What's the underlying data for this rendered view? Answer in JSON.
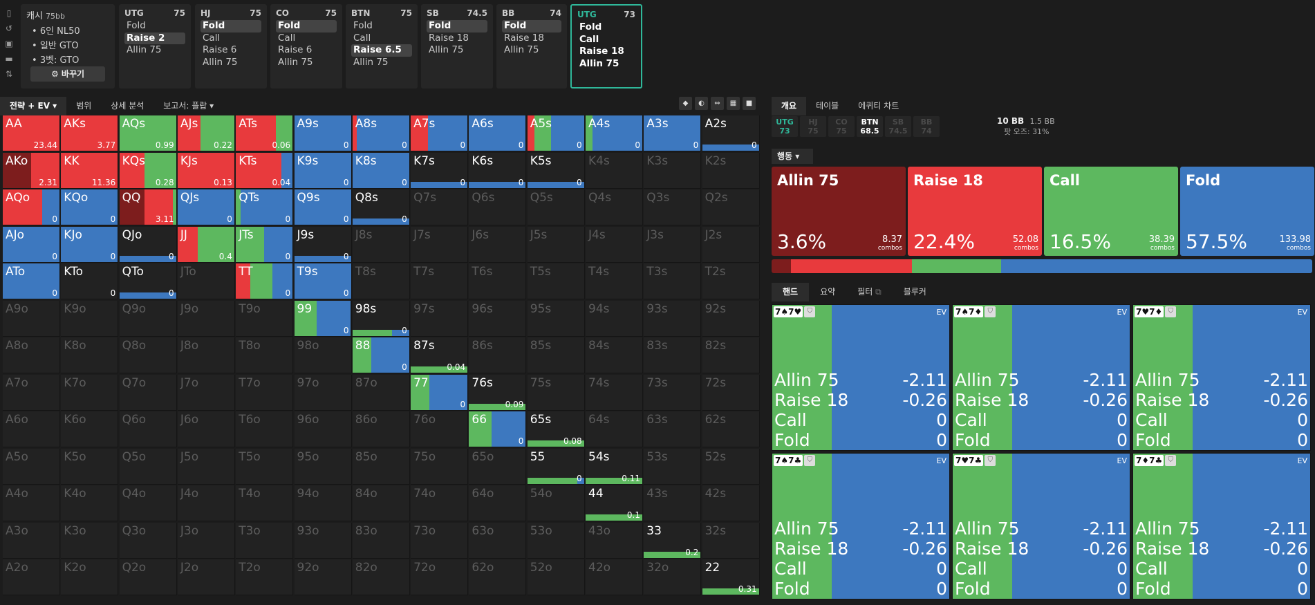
{
  "info": {
    "title": "캐시",
    "stack": "75bb",
    "items": [
      "6인 NL50",
      "일반 GTO",
      "3벳: GTO"
    ],
    "button": "바꾸기"
  },
  "positions": [
    {
      "name": "UTG",
      "stack": "75",
      "options": [
        "Fold",
        "Raise 2",
        "Allin 75"
      ],
      "selected": 1
    },
    {
      "name": "HJ",
      "stack": "75",
      "options": [
        "Fold",
        "Call",
        "Raise 6",
        "Allin 75"
      ],
      "selected": 0
    },
    {
      "name": "CO",
      "stack": "75",
      "options": [
        "Fold",
        "Call",
        "Raise 6",
        "Allin 75"
      ],
      "selected": 0
    },
    {
      "name": "BTN",
      "stack": "75",
      "options": [
        "Fold",
        "Call",
        "Raise 6.5",
        "Allin 75"
      ],
      "selected": 2
    },
    {
      "name": "SB",
      "stack": "74.5",
      "options": [
        "Fold",
        "Raise 18",
        "Allin 75"
      ],
      "selected": 0
    },
    {
      "name": "BB",
      "stack": "74",
      "options": [
        "Fold",
        "Raise 18",
        "Allin 75"
      ],
      "selected": 0
    },
    {
      "name": "UTG",
      "stack": "73",
      "options": [
        "Fold",
        "Call",
        "Raise 18",
        "Allin 75"
      ],
      "selected": -1
    }
  ],
  "grid_tabs": [
    "전략 + EV",
    "범위",
    "상세 분석",
    "보고서: 플랍"
  ],
  "right_tabs": [
    "개요",
    "테이블",
    "에퀴티 차트"
  ],
  "seats": [
    {
      "name": "UTG",
      "stack": "73"
    },
    {
      "name": "HJ",
      "stack": "75"
    },
    {
      "name": "CO",
      "stack": "75"
    },
    {
      "name": "BTN",
      "stack": "68.5"
    },
    {
      "name": "SB",
      "stack": "74.5"
    },
    {
      "name": "BB",
      "stack": "74"
    }
  ],
  "pot": {
    "main": "10 BB",
    "side": "1.5 BB",
    "label": "팟 오즈:",
    "odds": "31%"
  },
  "action_header": "행동",
  "actions": [
    {
      "name": "Allin 75",
      "pct": "3.6%",
      "combos": "8.37",
      "unit": "combos",
      "color": "#7d1d1d",
      "freq": 3.6
    },
    {
      "name": "Raise 18",
      "pct": "22.4%",
      "combos": "52.08",
      "unit": "combos",
      "color": "#e83a3d",
      "freq": 22.4
    },
    {
      "name": "Call",
      "pct": "16.5%",
      "combos": "38.39",
      "unit": "combos",
      "color": "#5db85f",
      "freq": 16.5
    },
    {
      "name": "Fold",
      "pct": "57.5%",
      "combos": "133.98",
      "unit": "combos",
      "color": "#3d78bf",
      "freq": 57.5
    }
  ],
  "hand_tabs": [
    "핸드",
    "요약",
    "필터",
    "블루커"
  ],
  "hands": [
    {
      "cards": [
        "7♠",
        "7♥"
      ],
      "ev_label": "EV",
      "rows": [
        [
          "Allin 75",
          "-2.11"
        ],
        [
          "Raise 18",
          "-0.26"
        ],
        [
          "Call",
          "0"
        ],
        [
          "Fold",
          "0"
        ]
      ]
    },
    {
      "cards": [
        "7♠",
        "7♦"
      ],
      "ev_label": "EV",
      "rows": [
        [
          "Allin 75",
          "-2.11"
        ],
        [
          "Raise 18",
          "-0.26"
        ],
        [
          "Call",
          "0"
        ],
        [
          "Fold",
          "0"
        ]
      ]
    },
    {
      "cards": [
        "7♥",
        "7♦"
      ],
      "ev_label": "EV",
      "rows": [
        [
          "Allin 75",
          "-2.11"
        ],
        [
          "Raise 18",
          "-0.26"
        ],
        [
          "Call",
          "0"
        ],
        [
          "Fold",
          "0"
        ]
      ]
    },
    {
      "cards": [
        "7♠",
        "7♣"
      ],
      "ev_label": "EV",
      "rows": [
        [
          "Allin 75",
          "-2.11"
        ],
        [
          "Raise 18",
          "-0.26"
        ],
        [
          "Call",
          "0"
        ],
        [
          "Fold",
          "0"
        ]
      ]
    },
    {
      "cards": [
        "7♥",
        "7♣"
      ],
      "ev_label": "EV",
      "rows": [
        [
          "Allin 75",
          "-2.11"
        ],
        [
          "Raise 18",
          "-0.26"
        ],
        [
          "Call",
          "0"
        ],
        [
          "Fold",
          "0"
        ]
      ]
    },
    {
      "cards": [
        "7♦",
        "7♣"
      ],
      "ev_label": "EV",
      "rows": [
        [
          "Allin 75",
          "-2.11"
        ],
        [
          "Raise 18",
          "-0.26"
        ],
        [
          "Call",
          "0"
        ],
        [
          "Fold",
          "0"
        ]
      ]
    }
  ],
  "grid": {
    "ranks": [
      "A",
      "K",
      "Q",
      "J",
      "T",
      "9",
      "8",
      "7",
      "6",
      "5",
      "4",
      "3",
      "2"
    ],
    "colors": {
      "allin": "#7d1d1d",
      "raise": "#e83a3d",
      "call": "#5db85f",
      "fold": "#3d78bf"
    },
    "cells": {
      "AA": {
        "ev": "23.44",
        "mix": [
          0,
          100,
          0,
          0
        ]
      },
      "AKs": {
        "ev": "3.77",
        "mix": [
          0,
          100,
          0,
          0
        ]
      },
      "AQs": {
        "ev": "0.99",
        "mix": [
          0,
          0,
          100,
          0
        ]
      },
      "AJs": {
        "ev": "0.22",
        "mix": [
          0,
          40,
          60,
          0
        ]
      },
      "ATs": {
        "ev": "0.06",
        "mix": [
          0,
          70,
          30,
          0
        ]
      },
      "A9s": {
        "ev": "0",
        "mix": [
          0,
          0,
          0,
          100
        ]
      },
      "A8s": {
        "ev": "0",
        "mix": [
          0,
          8,
          0,
          92
        ]
      },
      "A7s": {
        "ev": "0",
        "mix": [
          0,
          30,
          0,
          70
        ]
      },
      "A6s": {
        "ev": "0",
        "mix": [
          0,
          0,
          0,
          100
        ]
      },
      "A5s": {
        "ev": "0",
        "mix": [
          0,
          12,
          30,
          58
        ]
      },
      "A4s": {
        "ev": "0",
        "mix": [
          0,
          0,
          12,
          88
        ]
      },
      "A3s": {
        "ev": "0",
        "mix": [
          0,
          0,
          0,
          100
        ]
      },
      "A2s": {
        "ev": "0",
        "bar": [
          0,
          0,
          0,
          100
        ]
      },
      "AKo": {
        "ev": "2.31",
        "mix": [
          50,
          50,
          0,
          0
        ]
      },
      "KK": {
        "ev": "11.36",
        "mix": [
          0,
          100,
          0,
          0
        ]
      },
      "KQs": {
        "ev": "0.28",
        "mix": [
          0,
          45,
          55,
          0
        ]
      },
      "KJs": {
        "ev": "0.13",
        "mix": [
          0,
          100,
          0,
          0
        ]
      },
      "KTs": {
        "ev": "0.04",
        "mix": [
          0,
          80,
          0,
          20
        ]
      },
      "K9s": {
        "ev": "0",
        "mix": [
          0,
          0,
          0,
          100
        ]
      },
      "K8s": {
        "ev": "0",
        "mix": [
          0,
          0,
          0,
          100
        ]
      },
      "K7s": {
        "ev": "0",
        "bar": [
          0,
          0,
          0,
          100
        ]
      },
      "K6s": {
        "ev": "0",
        "bar": [
          0,
          0,
          0,
          100
        ]
      },
      "K5s": {
        "ev": "0",
        "bar": [
          0,
          0,
          0,
          100
        ]
      },
      "AQo": {
        "ev": "0",
        "mix": [
          0,
          70,
          0,
          30
        ]
      },
      "KQo": {
        "ev": "0",
        "mix": [
          0,
          0,
          0,
          100
        ]
      },
      "QQ": {
        "ev": "3.11",
        "mix": [
          45,
          50,
          5,
          0
        ]
      },
      "QJs": {
        "ev": "0",
        "mix": [
          0,
          0,
          0,
          100
        ]
      },
      "QTs": {
        "ev": "0",
        "mix": [
          0,
          0,
          8,
          92
        ]
      },
      "Q9s": {
        "ev": "0",
        "mix": [
          0,
          0,
          0,
          100
        ]
      },
      "Q8s": {
        "ev": "0",
        "bar": [
          0,
          0,
          0,
          100
        ]
      },
      "AJo": {
        "ev": "0",
        "mix": [
          0,
          0,
          0,
          100
        ]
      },
      "KJo": {
        "ev": "0",
        "mix": [
          0,
          0,
          0,
          100
        ]
      },
      "QJo": {
        "ev": "0",
        "bar": [
          0,
          0,
          0,
          100
        ]
      },
      "JJ": {
        "ev": "0.4",
        "mix": [
          0,
          35,
          65,
          0
        ]
      },
      "JTs": {
        "ev": "0",
        "mix": [
          0,
          0,
          50,
          50
        ]
      },
      "J9s": {
        "ev": "0",
        "bar": [
          0,
          0,
          0,
          100
        ]
      },
      "ATo": {
        "ev": "0",
        "mix": [
          0,
          0,
          0,
          100
        ]
      },
      "KTo": {
        "ev": "0",
        "bar": [
          0,
          0,
          0,
          0
        ]
      },
      "QTo": {
        "ev": "0",
        "bar": [
          0,
          0,
          0,
          100
        ]
      },
      "TT": {
        "ev": "0",
        "mix": [
          0,
          25,
          40,
          35
        ]
      },
      "T9s": {
        "ev": "0",
        "mix": [
          0,
          0,
          0,
          100
        ]
      },
      "99": {
        "ev": "0",
        "mix": [
          0,
          0,
          40,
          60
        ]
      },
      "98s": {
        "ev": "0",
        "bar": [
          0,
          0,
          70,
          30
        ]
      },
      "88": {
        "ev": "0",
        "mix": [
          0,
          0,
          33,
          67
        ]
      },
      "87s": {
        "ev": "0.04",
        "bar": [
          0,
          0,
          100,
          0
        ]
      },
      "77": {
        "ev": "0",
        "mix": [
          0,
          0,
          33,
          67
        ]
      },
      "76s": {
        "ev": "0.09",
        "bar": [
          0,
          0,
          100,
          0
        ]
      },
      "66": {
        "ev": "0",
        "mix": [
          0,
          0,
          40,
          60
        ]
      },
      "65s": {
        "ev": "0.08",
        "bar": [
          0,
          0,
          100,
          0
        ]
      },
      "55": {
        "ev": "0",
        "bar": [
          0,
          0,
          88,
          12
        ]
      },
      "54s": {
        "ev": "0.11",
        "bar": [
          0,
          0,
          100,
          0
        ]
      },
      "44": {
        "ev": "0.1",
        "bar": [
          0,
          0,
          100,
          0
        ]
      },
      "33": {
        "ev": "0.2",
        "bar": [
          0,
          0,
          100,
          0
        ]
      },
      "22": {
        "ev": "0.31",
        "bar": [
          0,
          0,
          100,
          0
        ]
      }
    }
  }
}
